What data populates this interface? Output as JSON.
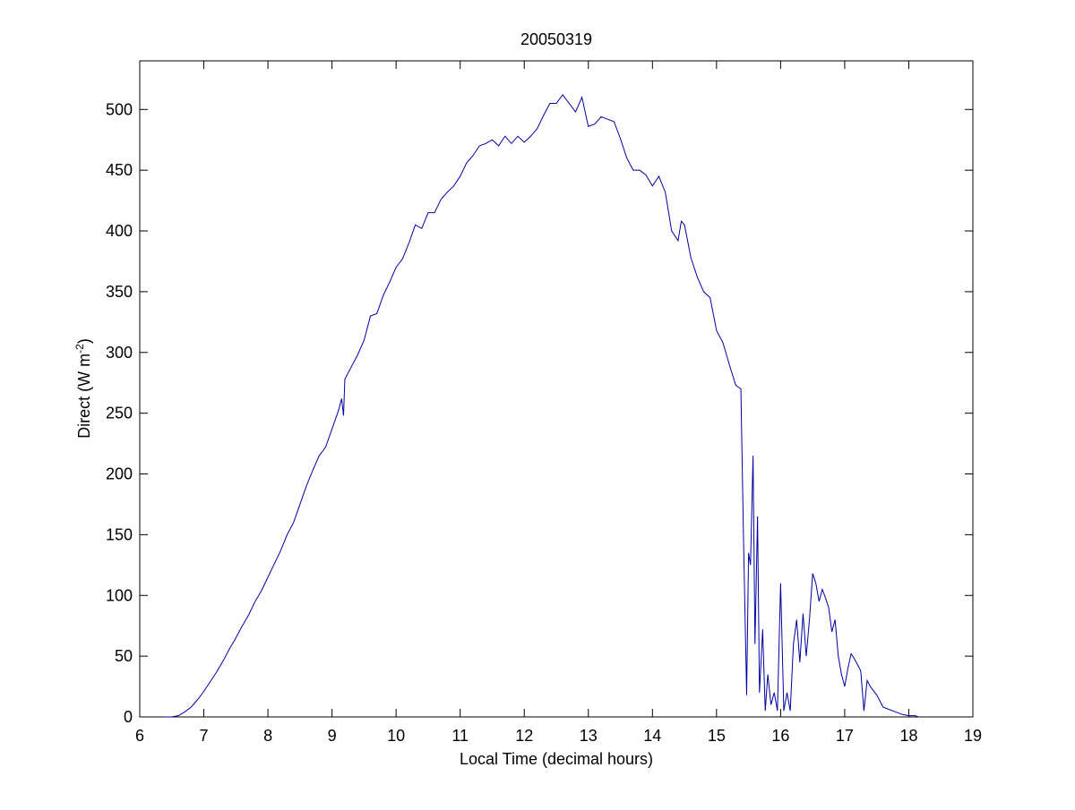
{
  "chart_data": {
    "type": "line",
    "title": "20050319",
    "xlabel": "Local Time (decimal hours)",
    "ylabel": {
      "text": "Direct (W m",
      "sup": "-2",
      "close": ")"
    },
    "xlim": [
      6,
      19
    ],
    "xticks": [
      6,
      7,
      8,
      9,
      10,
      11,
      12,
      13,
      14,
      15,
      16,
      17,
      18,
      19
    ],
    "ylim": [
      0,
      540
    ],
    "yticks": [
      0,
      50,
      100,
      150,
      200,
      250,
      300,
      350,
      400,
      450,
      500
    ],
    "series": [
      {
        "color": "#0000a0",
        "x": [
          6.4,
          6.5,
          6.6,
          6.7,
          6.8,
          6.9,
          7.0,
          7.1,
          7.2,
          7.3,
          7.4,
          7.5,
          7.6,
          7.7,
          7.8,
          7.9,
          8.0,
          8.1,
          8.2,
          8.3,
          8.4,
          8.5,
          8.6,
          8.7,
          8.8,
          8.9,
          9.0,
          9.1,
          9.15,
          9.18,
          9.2,
          9.3,
          9.4,
          9.5,
          9.6,
          9.7,
          9.8,
          9.9,
          10.0,
          10.1,
          10.2,
          10.3,
          10.4,
          10.5,
          10.6,
          10.7,
          10.8,
          10.9,
          11.0,
          11.1,
          11.2,
          11.3,
          11.4,
          11.5,
          11.6,
          11.7,
          11.8,
          11.9,
          12.0,
          12.1,
          12.2,
          12.3,
          12.4,
          12.5,
          12.6,
          12.7,
          12.8,
          12.9,
          13.0,
          13.1,
          13.2,
          13.3,
          13.4,
          13.5,
          13.6,
          13.7,
          13.8,
          13.9,
          14.0,
          14.1,
          14.2,
          14.3,
          14.4,
          14.45,
          14.5,
          14.6,
          14.7,
          14.8,
          14.9,
          15.0,
          15.1,
          15.2,
          15.3,
          15.38,
          15.42,
          15.47,
          15.5,
          15.53,
          15.57,
          15.6,
          15.64,
          15.67,
          15.72,
          15.76,
          15.8,
          15.85,
          15.9,
          15.95,
          16.0,
          16.05,
          16.1,
          16.15,
          16.2,
          16.25,
          16.3,
          16.35,
          16.4,
          16.45,
          16.5,
          16.55,
          16.6,
          16.65,
          16.7,
          16.75,
          16.8,
          16.85,
          16.9,
          16.95,
          17.0,
          17.05,
          17.1,
          17.15,
          17.25,
          17.3,
          17.35,
          17.4,
          17.5,
          17.6,
          17.7,
          17.8,
          17.9,
          18.0,
          18.1,
          18.15
        ],
        "values": [
          0,
          0,
          1,
          4,
          8,
          14,
          21,
          29,
          37,
          46,
          56,
          65,
          75,
          84,
          95,
          104,
          115,
          126,
          137,
          150,
          160,
          175,
          190,
          203,
          215,
          222,
          237,
          252,
          262,
          248,
          278,
          288,
          298,
          310,
          330,
          332,
          347,
          358,
          370,
          377,
          390,
          405,
          402,
          415,
          415,
          426,
          432,
          437,
          445,
          456,
          462,
          470,
          472,
          475,
          470,
          478,
          472,
          478,
          473,
          478,
          484,
          495,
          505,
          505,
          512,
          505,
          498,
          510,
          486,
          488,
          494,
          492,
          490,
          476,
          460,
          450,
          450,
          446,
          437,
          445,
          432,
          400,
          392,
          408,
          405,
          378,
          362,
          350,
          345,
          318,
          308,
          290,
          273,
          270,
          150,
          18,
          135,
          125,
          215,
          60,
          165,
          20,
          72,
          5,
          35,
          10,
          20,
          5,
          110,
          5,
          20,
          5,
          60,
          80,
          45,
          85,
          50,
          80,
          118,
          110,
          95,
          105,
          98,
          90,
          70,
          80,
          50,
          35,
          25,
          40,
          52,
          48,
          38,
          5,
          30,
          25,
          18,
          8,
          6,
          4,
          2,
          1,
          1,
          0
        ]
      }
    ]
  }
}
